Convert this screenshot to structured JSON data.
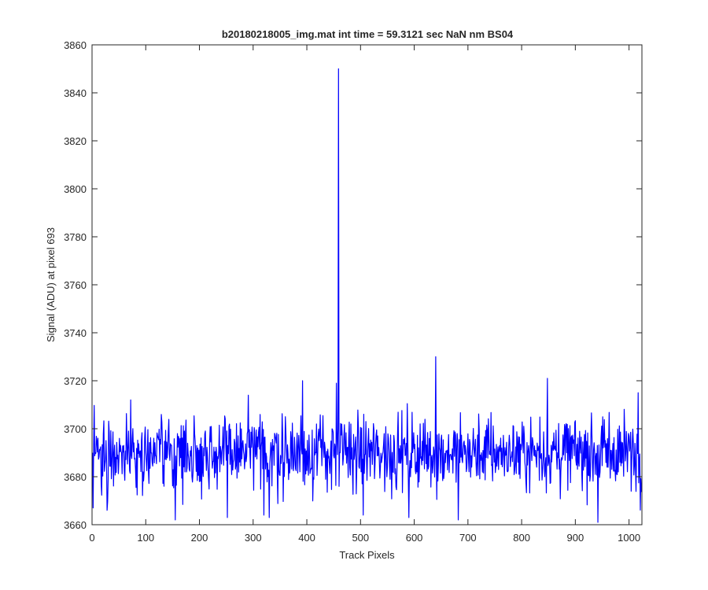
{
  "chart_data": {
    "type": "line",
    "title": "b20180218005_img.mat int time = 59.3121 sec  NaN nm BS04",
    "xlabel": "Track Pixels",
    "ylabel": "Signal (ADU) at pixel 693",
    "xlim": [
      0,
      1024
    ],
    "ylim": [
      3660,
      3860
    ],
    "xticks": [
      0,
      100,
      200,
      300,
      400,
      500,
      600,
      700,
      800,
      900,
      1000
    ],
    "yticks": [
      3660,
      3680,
      3700,
      3720,
      3740,
      3760,
      3780,
      3800,
      3820,
      3840,
      3860
    ],
    "grid": false,
    "line_color": "#0000ff",
    "series": [
      {
        "x": [
          1,
          458,
          459,
          460,
          461,
          462,
          639,
          640,
          641,
          1024
        ],
        "y": [
          3690,
          3700,
          3850,
          3676,
          3690,
          3690,
          3690,
          3730,
          3690,
          3674
        ],
        "noise_band": {
          "mean": 3690,
          "typical_range": [
            3676,
            3706
          ],
          "max": 3730,
          "min": 3661,
          "notable_extremes": [
            {
              "x": 2,
              "y": 3667
            },
            {
              "x": 28,
              "y": 3666
            },
            {
              "x": 72,
              "y": 3712
            },
            {
              "x": 155,
              "y": 3662
            },
            {
              "x": 252,
              "y": 3663
            },
            {
              "x": 291,
              "y": 3714
            },
            {
              "x": 320,
              "y": 3664
            },
            {
              "x": 330,
              "y": 3663
            },
            {
              "x": 392,
              "y": 3720
            },
            {
              "x": 455,
              "y": 3719
            },
            {
              "x": 505,
              "y": 3664
            },
            {
              "x": 590,
              "y": 3663
            },
            {
              "x": 682,
              "y": 3662
            },
            {
              "x": 848,
              "y": 3721
            },
            {
              "x": 942,
              "y": 3661
            },
            {
              "x": 1017,
              "y": 3715
            }
          ]
        }
      }
    ]
  }
}
